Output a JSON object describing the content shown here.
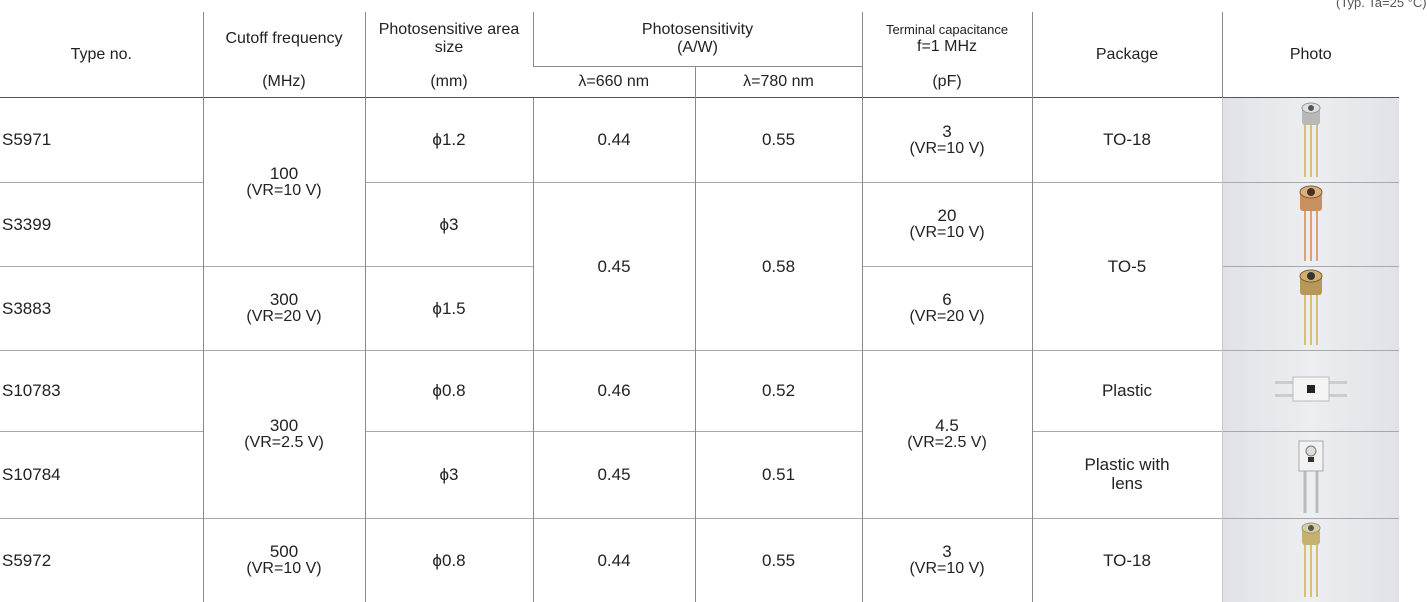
{
  "note": "(Typ. Ta=25 °C)",
  "header": {
    "type_no": "Type no.",
    "cutoff": "Cutoff frequency",
    "cutoff_unit": "(MHz)",
    "area": "Photosensitive area size",
    "area_unit": "(mm)",
    "sensitivity": "Photosensitivity",
    "sensitivity_unit": "(A/W)",
    "wl_660": "λ=660 nm",
    "wl_780": "λ=780 nm",
    "capacitance": "Terminal capacitance",
    "capacitance_condition": "f=1 MHz",
    "capacitance_unit": "(pF)",
    "package": "Package",
    "photo": "Photo"
  },
  "rows": [
    {
      "type_no": "S5971",
      "cutoff": {
        "value": "100",
        "condition": "(VR=10 V)"
      },
      "area": "ϕ1.2",
      "s660": "0.44",
      "s780": "0.55",
      "capacitance": {
        "value": "3",
        "condition": "(VR=10 V)"
      },
      "package": "TO-18"
    },
    {
      "type_no": "S3399",
      "area": "ϕ3",
      "s660": "0.45",
      "s780": "0.58",
      "capacitance": {
        "value": "20",
        "condition": "(VR=10 V)"
      },
      "package": "TO-5"
    },
    {
      "type_no": "S3883",
      "cutoff": {
        "value": "300",
        "condition": "(VR=20 V)"
      },
      "area": "ϕ1.5",
      "capacitance": {
        "value": "6",
        "condition": "(VR=20 V)"
      }
    },
    {
      "type_no": "S10783",
      "cutoff": {
        "value": "300",
        "condition": "(VR=2.5 V)"
      },
      "area": "ϕ0.8",
      "s660": "0.46",
      "s780": "0.52",
      "capacitance": {
        "value": "4.5",
        "condition": "(VR=2.5 V)"
      },
      "package": "Plastic"
    },
    {
      "type_no": "S10784",
      "area": "ϕ3",
      "s660": "0.45",
      "s780": "0.51",
      "package": "Plastic with lens"
    },
    {
      "type_no": "S5972",
      "cutoff": {
        "value": "500",
        "condition": "(VR=10 V)"
      },
      "area": "ϕ0.8",
      "s660": "0.44",
      "s780": "0.55",
      "capacitance": {
        "value": "3",
        "condition": "(VR=10 V)"
      },
      "package": "TO-18"
    }
  ]
}
